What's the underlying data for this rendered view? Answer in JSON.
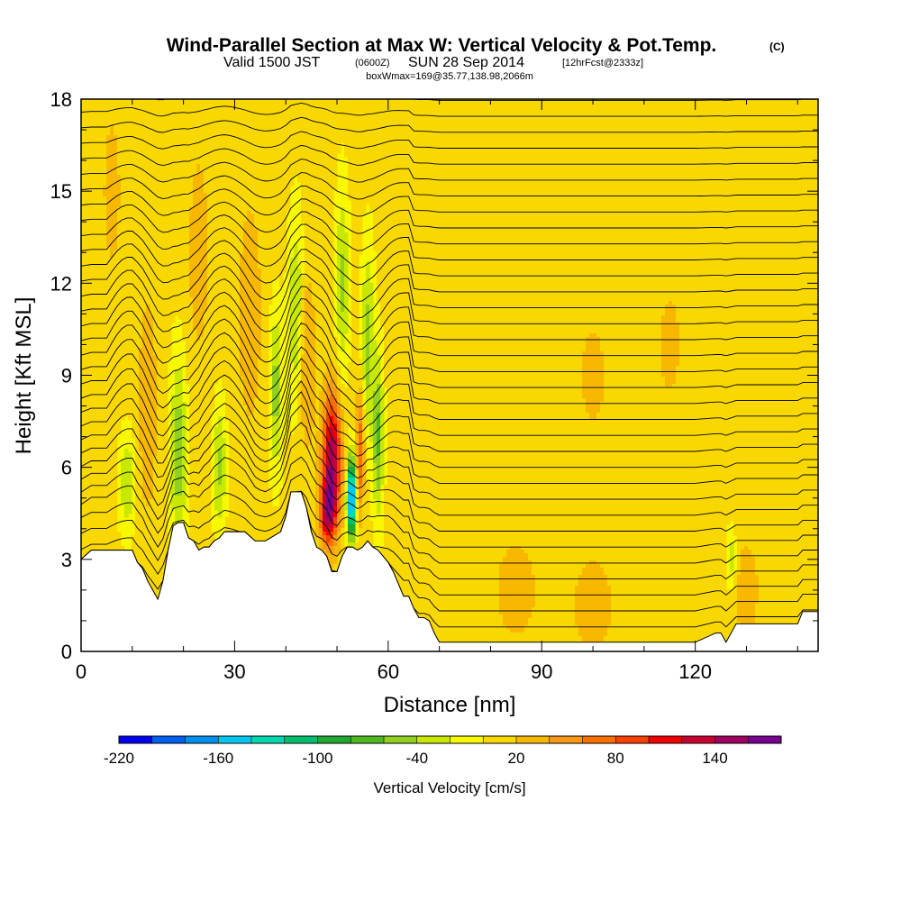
{
  "chart_data": {
    "type": "heatmap",
    "title": "Wind-Parallel Section at Max W: Vertical Velocity & Pot.Temp.",
    "title_units": "(C)",
    "subtitle_parts": {
      "valid": "Valid 1500 JST",
      "utc": "(0600Z)",
      "date": "SUN 28 Sep 2014",
      "forecast": "[12hrFcst@2333z]"
    },
    "subtitle2": "boxWmax=169@35.77,138.98,2066m",
    "xlabel": "Distance [nm]",
    "ylabel": "Height [Kft MSL]",
    "xlim": [
      0,
      144
    ],
    "ylim": [
      0,
      18
    ],
    "x_ticks": [
      0,
      30,
      60,
      90,
      120
    ],
    "y_ticks": [
      0,
      3,
      6,
      9,
      12,
      15,
      18
    ],
    "colorbar": {
      "title": "Vertical Velocity [cm/s]",
      "levels": [
        -220,
        -200,
        -180,
        -160,
        -140,
        -120,
        -100,
        -80,
        -60,
        -40,
        -20,
        0,
        20,
        40,
        60,
        80,
        100,
        120,
        140,
        160,
        180
      ],
      "tick_labels": [
        "-220",
        "-160",
        "-100",
        "-40",
        "20",
        "80",
        "140"
      ],
      "tick_values": [
        -220,
        -160,
        -100,
        -40,
        20,
        80,
        140
      ],
      "colors": [
        "#0000f0",
        "#0060f0",
        "#0090f0",
        "#00c8f0",
        "#00d8b0",
        "#00c070",
        "#20a830",
        "#50b820",
        "#90d020",
        "#c8e800",
        "#f8f800",
        "#f8d800",
        "#f8b800",
        "#f89818",
        "#f87000",
        "#f84000",
        "#f00000",
        "#c80030",
        "#a00060",
        "#780090"
      ]
    },
    "terrain_profile": {
      "x": [
        0,
        2,
        4,
        6,
        8,
        10,
        11,
        12,
        13,
        14,
        15,
        16,
        17,
        18,
        19,
        20,
        21,
        22,
        23,
        24,
        25,
        26,
        27,
        28,
        30,
        32,
        34,
        36,
        38,
        39,
        40,
        41,
        42,
        43,
        44,
        45,
        46,
        47,
        48,
        49,
        50,
        51,
        52,
        53,
        54,
        55,
        56,
        57,
        58,
        59,
        60,
        61,
        62,
        63,
        64,
        65,
        66,
        67,
        68,
        69,
        70,
        72,
        76,
        80,
        90,
        100,
        110,
        120,
        124,
        125,
        126,
        127,
        128,
        130,
        135,
        140,
        141,
        144
      ],
      "y": [
        3.0,
        3.3,
        3.3,
        3.3,
        3.3,
        3.3,
        2.9,
        2.7,
        2.3,
        2.0,
        1.7,
        2.3,
        3.3,
        4.1,
        4.2,
        4.2,
        3.7,
        3.6,
        3.3,
        3.4,
        3.4,
        3.6,
        3.7,
        3.9,
        3.9,
        3.9,
        3.6,
        3.6,
        3.8,
        3.9,
        4.4,
        5.2,
        5.2,
        5.2,
        4.7,
        3.9,
        3.4,
        3.3,
        3.1,
        2.6,
        2.6,
        3.1,
        3.4,
        3.4,
        3.3,
        3.4,
        3.6,
        3.4,
        3.3,
        3.1,
        2.9,
        2.6,
        2.2,
        1.8,
        1.8,
        1.4,
        1.1,
        1.1,
        1.0,
        0.6,
        0.3,
        0.3,
        0.3,
        0.3,
        0.3,
        0.3,
        0.3,
        0.3,
        0.6,
        0.6,
        0.3,
        0.6,
        0.9,
        0.9,
        0.9,
        0.9,
        1.3,
        1.3
      ]
    },
    "vertical_velocity_features": [
      {
        "x": 9,
        "y": 5.5,
        "w": -45,
        "sx": 1.5,
        "sy": 1.5
      },
      {
        "x": 19,
        "y": 6.5,
        "w": -60,
        "sx": 1.5,
        "sy": 3.0
      },
      {
        "x": 27,
        "y": 6.0,
        "w": -50,
        "sx": 1.2,
        "sy": 2.0
      },
      {
        "x": 38,
        "y": 8.5,
        "w": -55,
        "sx": 1.2,
        "sy": 2.5
      },
      {
        "x": 42,
        "y": 11.0,
        "w": -50,
        "sx": 1.5,
        "sy": 3.0
      },
      {
        "x": 51,
        "y": 12.0,
        "w": -50,
        "sx": 1.2,
        "sy": 3.0
      },
      {
        "x": 56,
        "y": 10.0,
        "w": -55,
        "sx": 1.2,
        "sy": 3.0
      },
      {
        "x": 58,
        "y": 7.0,
        "w": -70,
        "sx": 1.0,
        "sy": 2.5
      },
      {
        "x": 52.8,
        "y": 5.0,
        "w": -200,
        "sx": 0.8,
        "sy": 1.3
      },
      {
        "x": 49,
        "y": 6.2,
        "w": 150,
        "sx": 1.8,
        "sy": 2.2
      },
      {
        "x": 48,
        "y": 4.5,
        "w": 100,
        "sx": 1.5,
        "sy": 1.0
      },
      {
        "x": 54.5,
        "y": 6.5,
        "w": 75,
        "sx": 0.8,
        "sy": 2.0
      },
      {
        "x": 44,
        "y": 9.5,
        "w": 40,
        "sx": 1.8,
        "sy": 3.0
      },
      {
        "x": 33,
        "y": 11.0,
        "w": 30,
        "sx": 2.5,
        "sy": 4.0
      },
      {
        "x": 23,
        "y": 13.0,
        "w": 25,
        "sx": 2.5,
        "sy": 4.0
      },
      {
        "x": 13,
        "y": 8.0,
        "w": 30,
        "sx": 2.0,
        "sy": 4.0
      },
      {
        "x": 6,
        "y": 15.0,
        "w": 25,
        "sx": 2.0,
        "sy": 3.0
      },
      {
        "x": 85,
        "y": 2.0,
        "w": 25,
        "sx": 5.0,
        "sy": 2.0
      },
      {
        "x": 100,
        "y": 1.5,
        "w": 25,
        "sx": 5.0,
        "sy": 2.0
      },
      {
        "x": 130,
        "y": 2.0,
        "w": 25,
        "sx": 3.0,
        "sy": 2.0
      },
      {
        "x": 100,
        "y": 9.0,
        "w": 25,
        "sx": 3.0,
        "sy": 2.0
      },
      {
        "x": 115,
        "y": 10.0,
        "w": 25,
        "sx": 2.5,
        "sy": 2.0
      },
      {
        "x": 127,
        "y": 3.0,
        "w": -40,
        "sx": 1.0,
        "sy": 1.0
      }
    ],
    "isentrope_levels": 34,
    "isentrope_base_height_kft": 0.8,
    "isentrope_spacing_kft": 0.52
  }
}
